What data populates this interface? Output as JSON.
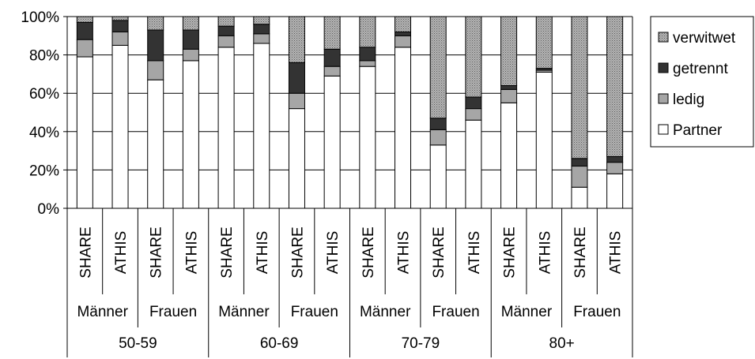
{
  "chart_data": {
    "type": "bar",
    "stacked": true,
    "percent": true,
    "ylim": [
      0,
      100
    ],
    "y_ticks": [
      "0%",
      "20%",
      "40%",
      "60%",
      "80%",
      "100%"
    ],
    "grid": true,
    "legend_position": "right",
    "categories": [
      "SHARE",
      "ATHIS",
      "SHARE",
      "ATHIS",
      "SHARE",
      "ATHIS",
      "SHARE",
      "ATHIS",
      "SHARE",
      "ATHIS",
      "SHARE",
      "ATHIS",
      "SHARE",
      "ATHIS",
      "SHARE",
      "ATHIS"
    ],
    "gender_groups": [
      "Männer",
      "Frauen",
      "Männer",
      "Frauen",
      "Männer",
      "Frauen",
      "Männer",
      "Frauen"
    ],
    "age_groups": [
      "50-59",
      "60-69",
      "70-79",
      "80+"
    ],
    "series": [
      {
        "name": "Partner",
        "color": "#ffffff",
        "values": [
          79,
          85,
          67,
          77,
          84,
          86,
          52,
          69,
          74,
          84,
          33,
          46,
          55,
          71,
          11,
          18
        ]
      },
      {
        "name": "ledig",
        "color": "#a6a6a6",
        "values": [
          9,
          7,
          10,
          6,
          6,
          5,
          8,
          5,
          3,
          6,
          8,
          6,
          7,
          1,
          11,
          6
        ]
      },
      {
        "name": "getrennt",
        "color": "#333333",
        "values": [
          9,
          6,
          16,
          10,
          5,
          5,
          16,
          9,
          7,
          2,
          6,
          6,
          2,
          1,
          4,
          3
        ]
      },
      {
        "name": "verwitwet",
        "color": "#b0b0b0",
        "values": [
          3,
          2,
          7,
          7,
          5,
          4,
          24,
          17,
          16,
          8,
          53,
          42,
          36,
          27,
          74,
          73
        ]
      }
    ],
    "legend_order": [
      "verwitwet",
      "getrennt",
      "ledig",
      "Partner"
    ]
  }
}
